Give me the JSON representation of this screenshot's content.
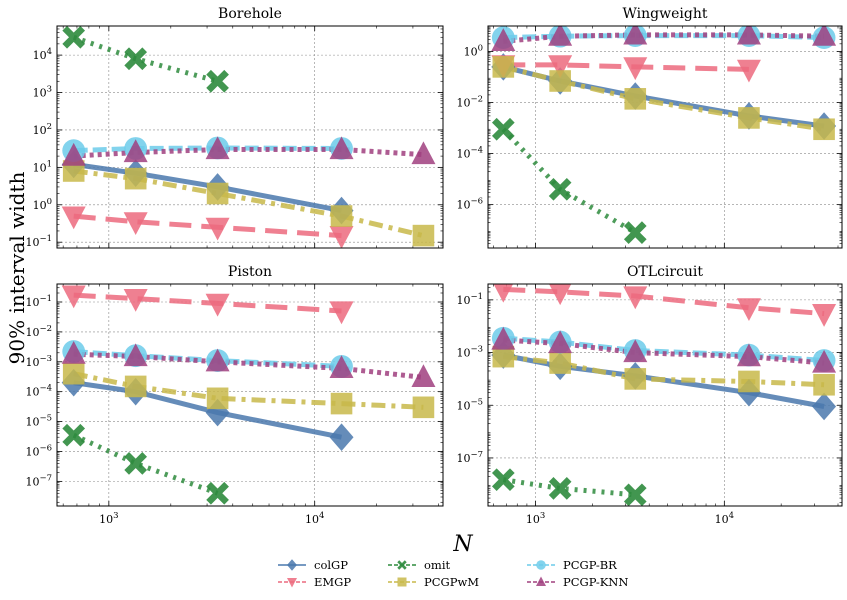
{
  "figure": {
    "ylabel": "90% interval width",
    "xlabel": "N"
  },
  "styles": {
    "colGP": {
      "color": "#4a78ad",
      "dash": "",
      "marker": "diamond",
      "width": 5
    },
    "EMGP": {
      "color": "#ec6a7e",
      "dash": "22,10",
      "marker": "tri-down",
      "width": 5
    },
    "omit": {
      "color": "#2e8b3d",
      "dash": "3,6",
      "marker": "x",
      "width": 5
    },
    "PCGPwM": {
      "color": "#c8b84a",
      "dash": "14,6,4,6",
      "marker": "square",
      "width": 5
    },
    "PCGP-BR": {
      "color": "#6ccbea",
      "dash": "14,5",
      "marker": "circle",
      "width": 5
    },
    "PCGP-KNN": {
      "color": "#a0407f",
      "dash": "4,4",
      "marker": "tri-up",
      "width": 5
    }
  },
  "legend": [
    "colGP",
    "EMGP",
    "omit",
    "PCGPwM",
    "PCGP-BR",
    "PCGP-KNN"
  ],
  "chart_data": [
    {
      "type": "line",
      "title": "Borehole",
      "xscale": "log",
      "yscale": "log",
      "xlim": [
        560,
        42000
      ],
      "ylim": [
        0.07,
        60000
      ],
      "yticks": [
        0.1,
        1,
        10,
        100,
        1000,
        10000
      ],
      "ytick_labels": [
        "10^-1",
        "10^0",
        "10^1",
        "10^2",
        "10^3",
        "10^4"
      ],
      "xtick_labels_shown": false,
      "series": [
        {
          "name": "colGP",
          "x": [
            675,
            1350,
            3375,
            13500
          ],
          "y": [
            12,
            7,
            3,
            0.7
          ]
        },
        {
          "name": "EMGP",
          "x": [
            675,
            1350,
            3375,
            13500
          ],
          "y": [
            0.5,
            0.35,
            0.25,
            0.15
          ]
        },
        {
          "name": "omit",
          "x": [
            675,
            1350,
            3375
          ],
          "y": [
            30000,
            8000,
            2000
          ]
        },
        {
          "name": "PCGPwM",
          "x": [
            675,
            1350,
            3375,
            13500,
            33750
          ],
          "y": [
            8,
            5,
            2,
            0.5,
            0.15
          ]
        },
        {
          "name": "PCGP-BR",
          "x": [
            675,
            1350,
            3375,
            13500
          ],
          "y": [
            28,
            32,
            33,
            32
          ]
        },
        {
          "name": "PCGP-KNN",
          "x": [
            675,
            1350,
            3375,
            13500,
            33750
          ],
          "y": [
            20,
            25,
            30,
            30,
            22
          ]
        }
      ]
    },
    {
      "type": "line",
      "title": "Wingweight",
      "xscale": "log",
      "yscale": "log",
      "xlim": [
        560,
        42000
      ],
      "ylim": [
        2e-08,
        10
      ],
      "yticks": [
        1e-06,
        0.0001,
        0.01,
        1
      ],
      "ytick_labels": [
        "10^-6",
        "10^-4",
        "10^-2",
        "10^0"
      ],
      "xtick_labels_shown": false,
      "series": [
        {
          "name": "colGP",
          "x": [
            675,
            1350,
            3375,
            13500,
            33750
          ],
          "y": [
            0.25,
            0.07,
            0.018,
            0.003,
            0.0012
          ]
        },
        {
          "name": "EMGP",
          "x": [
            675,
            1350,
            3375,
            13500
          ],
          "y": [
            0.3,
            0.3,
            0.25,
            0.2
          ]
        },
        {
          "name": "omit",
          "x": [
            675,
            1350,
            3375
          ],
          "y": [
            0.0009,
            4e-06,
            8e-08
          ]
        },
        {
          "name": "PCGPwM",
          "x": [
            675,
            1350,
            3375,
            13500,
            33750
          ],
          "y": [
            0.25,
            0.07,
            0.014,
            0.0025,
            0.0009
          ]
        },
        {
          "name": "PCGP-BR",
          "x": [
            675,
            1350,
            3375,
            13500,
            33750
          ],
          "y": [
            3.5,
            4,
            4.2,
            4.2,
            3.5
          ]
        },
        {
          "name": "PCGP-KNN",
          "x": [
            675,
            1350,
            3375,
            13500,
            33750
          ],
          "y": [
            2.5,
            4,
            4.5,
            4.5,
            4
          ]
        }
      ]
    },
    {
      "type": "line",
      "title": "Piston",
      "xscale": "log",
      "yscale": "log",
      "xlim": [
        560,
        42000
      ],
      "ylim": [
        1.5e-08,
        0.4
      ],
      "yticks": [
        1e-07,
        1e-06,
        1e-05,
        0.0001,
        0.001,
        0.01,
        0.1
      ],
      "ytick_labels": [
        "10^-7",
        "10^-6",
        "10^-5",
        "10^-4",
        "10^-3",
        "10^-2",
        "10^-1"
      ],
      "xticks": [
        1000,
        10000
      ],
      "xtick_labels": [
        "10^3",
        "10^4"
      ],
      "xtick_labels_shown": true,
      "series": [
        {
          "name": "colGP",
          "x": [
            675,
            1350,
            3375,
            13500
          ],
          "y": [
            0.0002,
            0.0001,
            2e-05,
            3e-06
          ]
        },
        {
          "name": "EMGP",
          "x": [
            675,
            1350,
            3375,
            13500
          ],
          "y": [
            0.17,
            0.13,
            0.09,
            0.05
          ]
        },
        {
          "name": "omit",
          "x": [
            675,
            1350,
            3375
          ],
          "y": [
            3.5e-06,
            4e-07,
            4e-08
          ]
        },
        {
          "name": "PCGPwM",
          "x": [
            675,
            1350,
            3375,
            13500,
            33750
          ],
          "y": [
            0.0004,
            0.00015,
            6e-05,
            4e-05,
            3e-05
          ]
        },
        {
          "name": "PCGP-BR",
          "x": [
            675,
            1350,
            3375,
            13500
          ],
          "y": [
            0.0022,
            0.0016,
            0.0011,
            0.0007
          ]
        },
        {
          "name": "PCGP-KNN",
          "x": [
            675,
            1350,
            3375,
            13500,
            33750
          ],
          "y": [
            0.0018,
            0.0015,
            0.001,
            0.0006,
            0.0003
          ]
        }
      ]
    },
    {
      "type": "line",
      "title": "OTLcircuit",
      "xscale": "log",
      "yscale": "log",
      "xlim": [
        560,
        42000
      ],
      "ylim": [
        1.5e-09,
        0.4
      ],
      "yticks": [
        1e-07,
        1e-05,
        0.001,
        0.1
      ],
      "ytick_labels": [
        "10^-7",
        "10^-5",
        "10^-3",
        "10^-1"
      ],
      "xticks": [
        1000,
        10000
      ],
      "xtick_labels": [
        "10^3",
        "10^4"
      ],
      "xtick_labels_shown": true,
      "series": [
        {
          "name": "colGP",
          "x": [
            675,
            1350,
            3375,
            13500,
            33750
          ],
          "y": [
            0.0008,
            0.0003,
            0.00013,
            3e-05,
            9e-06
          ]
        },
        {
          "name": "EMGP",
          "x": [
            675,
            1350,
            3375,
            13500,
            33750
          ],
          "y": [
            0.25,
            0.2,
            0.14,
            0.05,
            0.03
          ]
        },
        {
          "name": "omit",
          "x": [
            675,
            1350,
            3375
          ],
          "y": [
            1.5e-08,
            7e-09,
            4e-09
          ]
        },
        {
          "name": "PCGPwM",
          "x": [
            675,
            1350,
            3375,
            13500,
            33750
          ],
          "y": [
            0.0007,
            0.0004,
            0.0001,
            8e-05,
            6e-05
          ]
        },
        {
          "name": "PCGP-BR",
          "x": [
            675,
            1350,
            3375,
            13500,
            33750
          ],
          "y": [
            0.0035,
            0.0025,
            0.0012,
            0.0008,
            0.0005
          ]
        },
        {
          "name": "PCGP-KNN",
          "x": [
            675,
            1350,
            3375,
            13500,
            33750
          ],
          "y": [
            0.003,
            0.0022,
            0.001,
            0.0007,
            0.0004
          ]
        }
      ]
    }
  ]
}
